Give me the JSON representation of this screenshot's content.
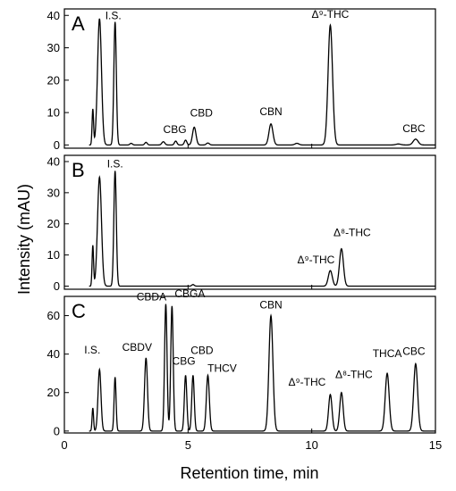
{
  "chart_data": {
    "type": "line",
    "xlabel": "Retention time, min",
    "ylabel": "Intensity (mAU)",
    "xlim": [
      0,
      15
    ],
    "x_ticks": [
      "0",
      "5",
      "10",
      "15"
    ],
    "panels": [
      {
        "letter": "A",
        "ylim": [
          -1,
          42
        ],
        "y_ticks": [
          "0",
          "10",
          "20",
          "30",
          "40"
        ],
        "peaks": [
          {
            "x": 1.15,
            "y": 11,
            "w": 0.03,
            "label": ""
          },
          {
            "x": 1.42,
            "y": 39,
            "w": 0.08,
            "label": ""
          },
          {
            "x": 2.05,
            "y": 38,
            "w": 0.05,
            "label": "I.S."
          },
          {
            "x": 2.7,
            "y": 0.5,
            "w": 0.05,
            "label": ""
          },
          {
            "x": 3.3,
            "y": 0.8,
            "w": 0.05,
            "label": ""
          },
          {
            "x": 4.0,
            "y": 1.0,
            "w": 0.06,
            "label": ""
          },
          {
            "x": 4.5,
            "y": 1.2,
            "w": 0.05,
            "label": ""
          },
          {
            "x": 4.9,
            "y": 1.5,
            "w": 0.05,
            "label": "CBG"
          },
          {
            "x": 5.25,
            "y": 5.5,
            "w": 0.07,
            "label": "CBD"
          },
          {
            "x": 5.8,
            "y": 0.6,
            "w": 0.06,
            "label": ""
          },
          {
            "x": 8.35,
            "y": 6.5,
            "w": 0.08,
            "label": "CBN"
          },
          {
            "x": 9.4,
            "y": 0.5,
            "w": 0.08,
            "label": ""
          },
          {
            "x": 10.75,
            "y": 37,
            "w": 0.09,
            "label": "Δ⁹-THC"
          },
          {
            "x": 13.5,
            "y": 0.3,
            "w": 0.1,
            "label": ""
          },
          {
            "x": 14.2,
            "y": 1.8,
            "w": 0.1,
            "label": "CBC"
          }
        ]
      },
      {
        "letter": "B",
        "ylim": [
          -1,
          42
        ],
        "y_ticks": [
          "0",
          "10",
          "20",
          "30",
          "40"
        ],
        "peaks": [
          {
            "x": 1.15,
            "y": 13,
            "w": 0.03,
            "label": ""
          },
          {
            "x": 1.42,
            "y": 35,
            "w": 0.08,
            "label": ""
          },
          {
            "x": 2.05,
            "y": 37,
            "w": 0.05,
            "label": "I.S."
          },
          {
            "x": 5.2,
            "y": 0.5,
            "w": 0.05,
            "label": ""
          },
          {
            "x": 10.75,
            "y": 5,
            "w": 0.08,
            "label": "Δ⁹-THC"
          },
          {
            "x": 11.2,
            "y": 12,
            "w": 0.08,
            "label": "Δ⁸-THC"
          }
        ]
      },
      {
        "letter": "C",
        "ylim": [
          -1,
          70
        ],
        "y_ticks": [
          "0",
          "20",
          "40",
          "60"
        ],
        "peaks": [
          {
            "x": 1.15,
            "y": 12,
            "w": 0.03,
            "label": ""
          },
          {
            "x": 1.42,
            "y": 32,
            "w": 0.06,
            "label": "I.S."
          },
          {
            "x": 2.05,
            "y": 28,
            "w": 0.04,
            "label": ""
          },
          {
            "x": 3.3,
            "y": 38,
            "w": 0.06,
            "label": "CBDV"
          },
          {
            "x": 4.1,
            "y": 66,
            "w": 0.05,
            "label": "CBDA"
          },
          {
            "x": 4.35,
            "y": 65,
            "w": 0.05,
            "label": "CBGA"
          },
          {
            "x": 4.9,
            "y": 29,
            "w": 0.05,
            "label": "CBG"
          },
          {
            "x": 5.2,
            "y": 29,
            "w": 0.05,
            "label": "CBD"
          },
          {
            "x": 5.8,
            "y": 29,
            "w": 0.06,
            "label": "THCV"
          },
          {
            "x": 8.35,
            "y": 60,
            "w": 0.08,
            "label": "CBN"
          },
          {
            "x": 10.75,
            "y": 19,
            "w": 0.07,
            "label": "Δ⁹-THC"
          },
          {
            "x": 11.2,
            "y": 20,
            "w": 0.07,
            "label": "Δ⁸-THC"
          },
          {
            "x": 13.05,
            "y": 30,
            "w": 0.08,
            "label": "THCA"
          },
          {
            "x": 14.2,
            "y": 35,
            "w": 0.08,
            "label": "CBC"
          }
        ]
      }
    ]
  }
}
